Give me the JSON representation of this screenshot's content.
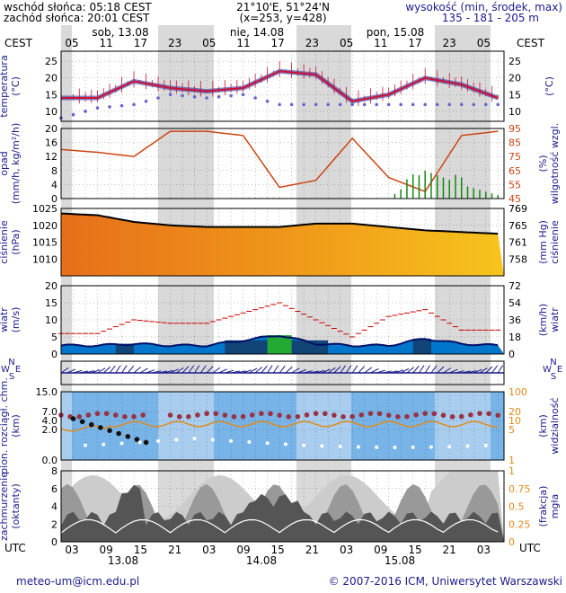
{
  "header": {
    "sunrise": "wschód słońca: 05:18 CEST",
    "sunset": "zachód słońca: 20:01 CEST",
    "coords": "21°10'E, 51°24'N",
    "grid": "(x=253, y=428)",
    "height_title": "wysokość (min, środek, max)",
    "height_values": "135 - 181 - 205 m"
  },
  "footer": {
    "email": "meteo-um@icm.edu.pl",
    "copyright": "© 2007-2016 ICM, Uniwersytet Warszawski"
  },
  "colors": {
    "shade": "#d9d9d9",
    "temp": "#cc1133",
    "dew": "#6666cc",
    "humidity": "#cc4411",
    "rain": "#118811",
    "pressure_line": "#000000",
    "wind_gust": "#cc0000",
    "wind_fill": "#0077cc",
    "vis_bg": "#79b4e8",
    "cloud_dark": "#555555",
    "cloud_mid": "#999999",
    "cloud_light": "#cccccc",
    "navy": "#1a1a8c"
  },
  "time_axis": {
    "cest_label_left": "CEST",
    "cest_label_right": "CEST",
    "utc_label_left": "UTC",
    "utc_label_right": "UTC",
    "cest_ticks": [
      "05",
      "11",
      "17",
      "23",
      "05",
      "11",
      "17",
      "23",
      "05",
      "11",
      "17",
      "23",
      "05"
    ],
    "utc_ticks": [
      "03",
      "09",
      "15",
      "21",
      "03",
      "09",
      "15",
      "21",
      "03",
      "09",
      "15",
      "21",
      "03"
    ],
    "days_top": [
      "sob, 13.08",
      "nie, 14.08",
      "pon, 15.08"
    ],
    "days_bottom": [
      "13.08",
      "14.08",
      "15.08"
    ]
  },
  "chart_data": [
    {
      "type": "line",
      "panel": "temperature",
      "ylabel_left": "temperatura (°C)",
      "ylabel_right": "(°C)",
      "ylim": [
        7,
        28
      ],
      "ticks": [
        "25",
        "20",
        "15",
        "10"
      ],
      "x": [
        0,
        6,
        12,
        18,
        24,
        30,
        36,
        42,
        48,
        54,
        60,
        66,
        72
      ],
      "series": [
        {
          "values": [
            14,
            14,
            19,
            17,
            16,
            17,
            22,
            21,
            13,
            15,
            20,
            18,
            14
          ]
        },
        {
          "values": [
            8,
            11,
            12,
            15,
            14,
            15,
            12,
            12,
            12,
            12,
            12,
            12,
            12
          ]
        }
      ]
    },
    {
      "type": "line",
      "panel": "precipitation-humidity",
      "ylabel_left": "opad (mm/h, kg/m²/h)",
      "ylabel_right": "(%) wilgotność wzgl.",
      "ylim": [
        0,
        20
      ],
      "ticks_left": [
        "20",
        "16",
        "12",
        "8",
        "4",
        "0"
      ],
      "ticks_right": [
        "95",
        "85",
        "75",
        "65",
        "55",
        "45"
      ],
      "x": [
        0,
        6,
        12,
        18,
        24,
        30,
        36,
        42,
        48,
        54,
        60,
        66,
        72
      ],
      "series": [
        {
          "values": [
            80,
            78,
            75,
            93,
            93,
            90,
            53,
            58,
            88,
            60,
            50,
            90,
            93
          ]
        },
        {
          "values": [
            0,
            0,
            0,
            0.2,
            0,
            0.2,
            0.2,
            0,
            0,
            0,
            8,
            4,
            1
          ]
        }
      ]
    },
    {
      "type": "area",
      "panel": "pressure",
      "ylabel_left": "ciśnienie (hPa)",
      "ylabel_right": "(mm Hg) ciśnienie",
      "ylim": [
        1005,
        1025
      ],
      "ticks_left": [
        "1025",
        "1020",
        "1015",
        "1010"
      ],
      "ticks_right": [
        "769",
        "765",
        "761",
        "758"
      ],
      "x": [
        0,
        6,
        12,
        18,
        24,
        30,
        36,
        42,
        48,
        54,
        60,
        66,
        72
      ],
      "values": [
        1023.5,
        1023,
        1021,
        1020,
        1019.5,
        1019.5,
        1019.5,
        1020.5,
        1020.5,
        1019.5,
        1018.5,
        1018,
        1017.5
      ]
    },
    {
      "type": "area",
      "panel": "wind",
      "ylabel_left": "wiatr (m/s)",
      "ylabel_right": "(km/h) wiatr",
      "ylim": [
        0,
        20
      ],
      "ticks_left": [
        "20",
        "15",
        "10",
        "5",
        "0"
      ],
      "ticks_right": [
        "72",
        "54",
        "36",
        "18",
        "0"
      ],
      "x": [
        0,
        6,
        12,
        18,
        24,
        30,
        36,
        42,
        48,
        54,
        60,
        66,
        72
      ],
      "series": [
        {
          "values": [
            2.5,
            2.5,
            3,
            2.5,
            2.5,
            4,
            5.5,
            3,
            2.5,
            2.5,
            4.5,
            3,
            2.5
          ]
        },
        {
          "values": [
            6,
            6,
            10,
            9,
            9,
            12,
            15,
            10,
            5,
            11,
            13,
            7,
            7
          ]
        }
      ]
    },
    {
      "type": "scatter",
      "panel": "visibility",
      "ylabel_left": "pion. rozciągł. chm. (km)",
      "ylabel_right": "(km) widzialność",
      "ticks_left": [
        "15.0",
        "7.0",
        "4.0",
        "2.0",
        "0.0"
      ],
      "ticks_right": [
        "100",
        "20",
        "10",
        "5",
        "1"
      ]
    },
    {
      "type": "area",
      "panel": "cloud",
      "ylabel_left": "zachmurzenie (oktanty)",
      "ylabel_right": "(frakcja) mgła",
      "ylim": [
        0,
        8
      ],
      "ticks_left": [
        "8",
        "6",
        "4",
        "2",
        "0"
      ],
      "ticks_right": [
        "1",
        "0.75",
        "0.5",
        "0.25",
        "0"
      ]
    }
  ]
}
